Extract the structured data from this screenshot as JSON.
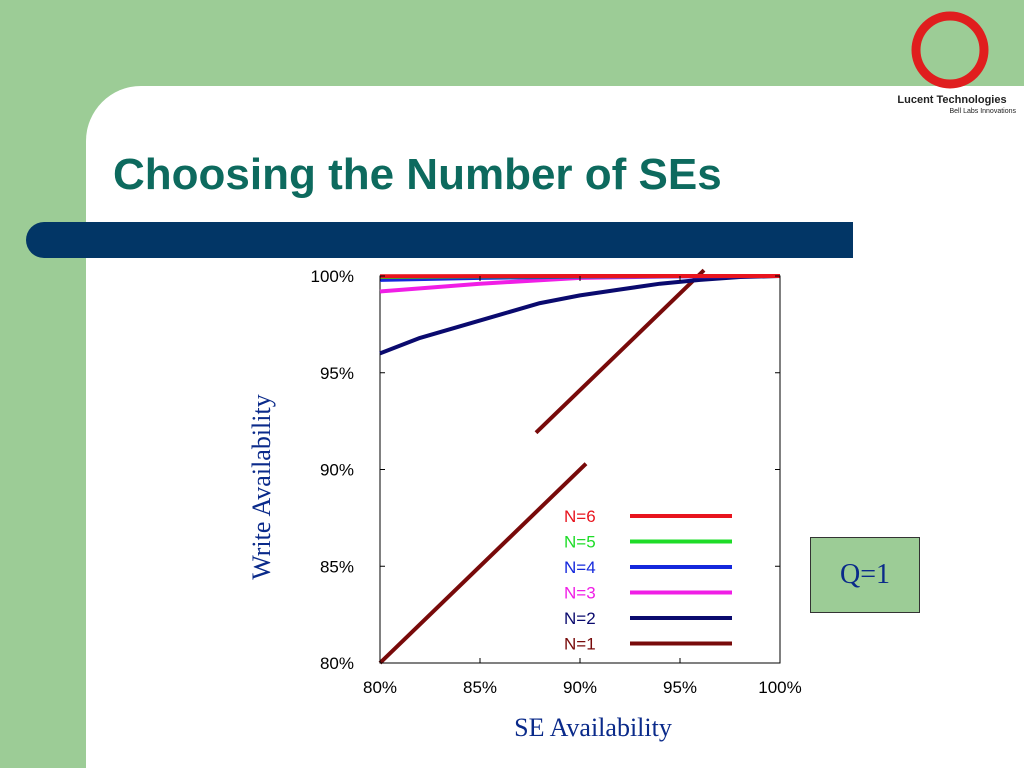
{
  "slide": {
    "title": "Choosing the Number of SEs",
    "logo": {
      "brand": "Lucent Technologies",
      "tagline": "Bell Labs Innovations",
      "icon": "lucent-ring-icon"
    },
    "annotation": "Q=1"
  },
  "colors": {
    "background_green": "#9ccc96",
    "title_teal": "#0d6a5e",
    "title_bar_navy": "#023666",
    "axis_label_blue": "#0a2a8a"
  },
  "chart_data": {
    "type": "line",
    "xlabel": "SE Availability",
    "ylabel": "Write Availability",
    "xlim": [
      80,
      100
    ],
    "ylim": [
      80,
      100
    ],
    "x_ticks": [
      "80%",
      "85%",
      "90%",
      "95%",
      "100%"
    ],
    "y_ticks": [
      "80%",
      "85%",
      "90%",
      "95%",
      "100%"
    ],
    "grid": false,
    "legend_position": "inside-bottom-right",
    "series": [
      {
        "name": "N=6",
        "color": "#e8141e",
        "x": [
          80,
          85,
          90,
          95,
          100
        ],
        "y": [
          99.99,
          99.995,
          99.999,
          100,
          100
        ]
      },
      {
        "name": "N=5",
        "color": "#1edc28",
        "x": [
          80,
          85,
          90,
          95,
          100
        ],
        "y": [
          99.95,
          99.98,
          99.99,
          100,
          100
        ]
      },
      {
        "name": "N=4",
        "color": "#1428dc",
        "x": [
          80,
          85,
          90,
          95,
          100
        ],
        "y": [
          99.8,
          99.9,
          99.97,
          99.99,
          100
        ]
      },
      {
        "name": "N=3",
        "color": "#f01ee6",
        "x": [
          80,
          85,
          90,
          95,
          100
        ],
        "y": [
          99.2,
          99.6,
          99.9,
          99.99,
          100
        ]
      },
      {
        "name": "N=2",
        "color": "#0a0a6e",
        "x": [
          80,
          82,
          84,
          86,
          88,
          90,
          92,
          94,
          96,
          98,
          100
        ],
        "y": [
          96.0,
          96.8,
          97.4,
          98.0,
          98.6,
          99.0,
          99.3,
          99.6,
          99.8,
          99.95,
          100
        ]
      },
      {
        "name": "N=1",
        "color": "#780a0a",
        "segments": [
          {
            "x": [
              80,
              90.3
            ],
            "y": [
              80,
              90.3
            ]
          },
          {
            "x": [
              87.8,
              96.2
            ],
            "y": [
              91.9,
              100.3
            ]
          }
        ]
      }
    ]
  }
}
